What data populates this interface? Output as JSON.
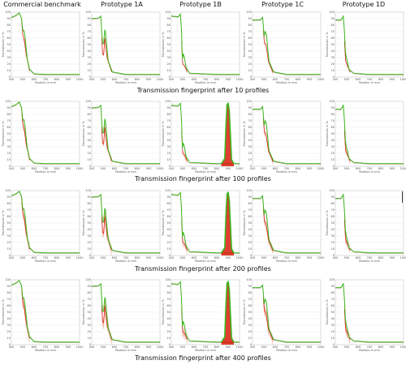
{
  "columns": [
    "Commercial benchmark",
    "Prototype 1A",
    "Prototype 1B",
    "Prototype 1C",
    "Prototype 1D"
  ],
  "row_titles": [
    "Transmission fingerprint after 10 profiles",
    "Transmission fingerprint after 100 profiles",
    "Transmission fingerprint after 200 profiles",
    "Transmission fingerprint after 400 profiles"
  ],
  "axis": {
    "ylabel": "Transmission in %",
    "xlabel": "Position in mm",
    "y_ticks": [
      "100",
      "90",
      "80",
      "70",
      "60",
      "50",
      "40",
      "30",
      "20",
      "10",
      "0"
    ],
    "x_ticks": [
      "400",
      "500",
      "600",
      "700",
      "800",
      "900",
      "1000"
    ]
  },
  "colors": {
    "green": "#3cb81e",
    "red": "#d81d0c",
    "pale_red": "#f1b3a8",
    "grid": "#e3e3e3"
  },
  "chart_data": {
    "type": "line",
    "grid": true,
    "ylim": [
      0,
      100
    ],
    "xlim": [
      400,
      1000
    ],
    "profiles_per_row": [
      10,
      100,
      200,
      400
    ],
    "panels": {
      "Commercial benchmark": {
        "curve": [
          [
            400,
            92
          ],
          [
            440,
            95
          ],
          [
            470,
            99
          ],
          [
            490,
            90
          ],
          [
            500,
            72
          ],
          [
            510,
            72
          ],
          [
            520,
            62
          ],
          [
            540,
            28
          ],
          [
            560,
            12
          ],
          [
            600,
            5
          ],
          [
            700,
            4
          ],
          [
            1000,
            4
          ]
        ],
        "red_dip": [
          [
            490,
            88
          ],
          [
            500,
            66
          ],
          [
            515,
            55
          ],
          [
            530,
            35
          ],
          [
            560,
            10
          ]
        ],
        "late_peak": null
      },
      "Prototype 1A": {
        "curve": [
          [
            400,
            90
          ],
          [
            460,
            91
          ],
          [
            480,
            94
          ],
          [
            488,
            70
          ],
          [
            495,
            52
          ],
          [
            505,
            52
          ],
          [
            515,
            73
          ],
          [
            520,
            70
          ],
          [
            545,
            25
          ],
          [
            580,
            8
          ],
          [
            700,
            4
          ],
          [
            1000,
            4
          ]
        ],
        "red_dip": [
          [
            488,
            60
          ],
          [
            495,
            36
          ],
          [
            505,
            34
          ],
          [
            515,
            60
          ],
          [
            535,
            30
          ],
          [
            575,
            8
          ]
        ],
        "late_peak": null
      },
      "Prototype 1B": {
        "curve": [
          [
            400,
            94
          ],
          [
            460,
            93
          ],
          [
            480,
            97
          ],
          [
            490,
            70
          ],
          [
            497,
            28
          ],
          [
            505,
            36
          ],
          [
            515,
            30
          ],
          [
            530,
            15
          ],
          [
            560,
            6
          ],
          [
            800,
            4
          ],
          [
            1000,
            4
          ]
        ],
        "red_dip": [
          [
            490,
            55
          ],
          [
            500,
            20
          ],
          [
            515,
            18
          ],
          [
            540,
            8
          ]
        ],
        "late_peak": [
          [
            840,
            4
          ],
          [
            870,
            12
          ],
          [
            880,
            60
          ],
          [
            890,
            95
          ],
          [
            900,
            97
          ],
          [
            910,
            85
          ],
          [
            930,
            10
          ],
          [
            950,
            4
          ]
        ]
      },
      "Prototype 1C": {
        "curve": [
          [
            400,
            88
          ],
          [
            470,
            88
          ],
          [
            488,
            92
          ],
          [
            495,
            80
          ],
          [
            502,
            63
          ],
          [
            512,
            70
          ],
          [
            522,
            66
          ],
          [
            545,
            24
          ],
          [
            585,
            8
          ],
          [
            700,
            4
          ],
          [
            1000,
            4
          ]
        ],
        "red_dip": [
          [
            495,
            72
          ],
          [
            505,
            52
          ],
          [
            518,
            50
          ],
          [
            540,
            24
          ],
          [
            580,
            7
          ]
        ],
        "late_peak": null
      },
      "Prototype 1D": {
        "curve": [
          [
            400,
            88
          ],
          [
            450,
            88
          ],
          [
            470,
            94
          ],
          [
            480,
            70
          ],
          [
            488,
            40
          ],
          [
            496,
            30
          ],
          [
            506,
            24
          ],
          [
            520,
            12
          ],
          [
            560,
            6
          ],
          [
            700,
            4
          ],
          [
            1000,
            4
          ]
        ],
        "red_dip": [
          [
            480,
            55
          ],
          [
            490,
            25
          ],
          [
            505,
            18
          ],
          [
            530,
            8
          ]
        ],
        "late_peak": null
      }
    }
  }
}
